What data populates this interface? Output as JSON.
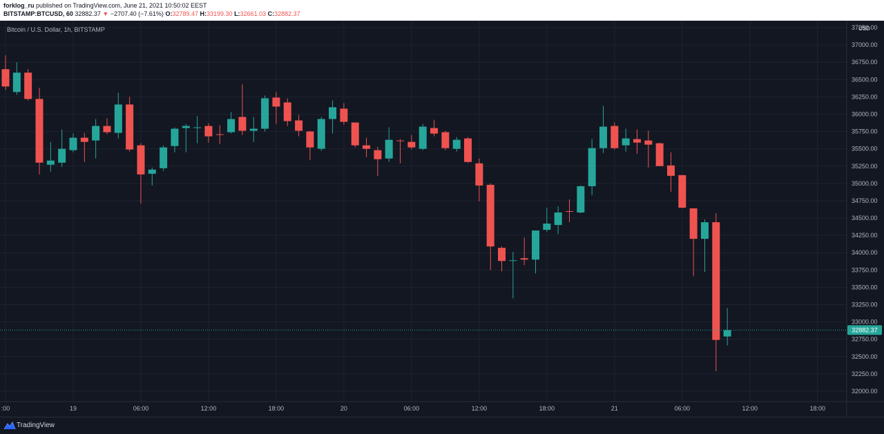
{
  "header": {
    "author": "forklog_ru",
    "published_text": "published on TradingView.com, June 21, 2021 10:50:02 EEST",
    "symbol": "BITSTAMP:BTCUSD, 60",
    "last": "32882.37",
    "arrow": "▼",
    "change": "−2707.40 (−7.61%)",
    "o_label": "O:",
    "o_value": "32789.47",
    "h_label": "H:",
    "h_value": "33199.30",
    "l_label": "L:",
    "l_value": "32661.03",
    "c_label": "C:",
    "c_value": "32882.37"
  },
  "legend": {
    "title": "Bitcoin / U.S. Dollar, 1h, BITSTAMP"
  },
  "footer": {
    "brand": "TradingView"
  },
  "colors": {
    "background": "#131722",
    "grid": "#1f2330",
    "up": "#26a69a",
    "down": "#ef5350",
    "text": "#b2b5be"
  },
  "chart_data": {
    "type": "candlestick",
    "currency_label": "USD",
    "last_price": 32882.37,
    "last_price_label": "32882.37",
    "ylim": [
      31850,
      37350
    ],
    "y_ticks": [
      32000,
      32250,
      32500,
      32750,
      33000,
      33250,
      33500,
      33750,
      34000,
      34250,
      34500,
      34750,
      35000,
      35250,
      35500,
      35750,
      36000,
      36250,
      36500,
      36750,
      37000,
      37250
    ],
    "y_tick_labels": [
      "32000.00",
      "32250.00",
      "32500.00",
      "32750.00",
      "33000.00",
      "33250.00",
      "33500.00",
      "33750.00",
      "34000.00",
      "34250.00",
      "34500.00",
      "34750.00",
      "35000.00",
      "35250.00",
      "35500.00",
      "35750.00",
      "36000.00",
      "36250.00",
      "36500.00",
      "36750.00",
      "37000.00",
      "37250.00"
    ],
    "x_ticks": [
      {
        "hour": 0,
        "label": ":00"
      },
      {
        "hour": 6,
        "label": "19"
      },
      {
        "hour": 12,
        "label": "06:00"
      },
      {
        "hour": 18,
        "label": "12:00"
      },
      {
        "hour": 24,
        "label": "18:00"
      },
      {
        "hour": 30,
        "label": "20"
      },
      {
        "hour": 36,
        "label": "06:00"
      },
      {
        "hour": 42,
        "label": "12:00"
      },
      {
        "hour": 48,
        "label": "18:00"
      },
      {
        "hour": 54,
        "label": "21"
      },
      {
        "hour": 60,
        "label": "06:00"
      },
      {
        "hour": 66,
        "label": "12:00"
      },
      {
        "hour": 72,
        "label": "18:00"
      }
    ],
    "candles": [
      {
        "t": 0,
        "o": 36650,
        "h": 36850,
        "l": 36350,
        "c": 36400
      },
      {
        "t": 1,
        "o": 36320,
        "h": 36750,
        "l": 36280,
        "c": 36600
      },
      {
        "t": 2,
        "o": 36600,
        "h": 36650,
        "l": 36200,
        "c": 36220
      },
      {
        "t": 3,
        "o": 36220,
        "h": 36380,
        "l": 35130,
        "c": 35300
      },
      {
        "t": 4,
        "o": 35270,
        "h": 35600,
        "l": 35170,
        "c": 35330
      },
      {
        "t": 5,
        "o": 35300,
        "h": 35780,
        "l": 35240,
        "c": 35500
      },
      {
        "t": 6,
        "o": 35480,
        "h": 35720,
        "l": 35450,
        "c": 35660
      },
      {
        "t": 7,
        "o": 35660,
        "h": 35730,
        "l": 35310,
        "c": 35600
      },
      {
        "t": 8,
        "o": 35620,
        "h": 35930,
        "l": 35360,
        "c": 35830
      },
      {
        "t": 9,
        "o": 35830,
        "h": 35940,
        "l": 35710,
        "c": 35740
      },
      {
        "t": 10,
        "o": 35730,
        "h": 36310,
        "l": 35650,
        "c": 36140
      },
      {
        "t": 11,
        "o": 36140,
        "h": 36250,
        "l": 35460,
        "c": 35490
      },
      {
        "t": 12,
        "o": 35550,
        "h": 35580,
        "l": 34710,
        "c": 35130
      },
      {
        "t": 13,
        "o": 35140,
        "h": 35230,
        "l": 34970,
        "c": 35200
      },
      {
        "t": 14,
        "o": 35220,
        "h": 35550,
        "l": 35180,
        "c": 35520
      },
      {
        "t": 15,
        "o": 35540,
        "h": 35810,
        "l": 35450,
        "c": 35790
      },
      {
        "t": 16,
        "o": 35800,
        "h": 35860,
        "l": 35450,
        "c": 35830
      },
      {
        "t": 17,
        "o": 35810,
        "h": 35970,
        "l": 35580,
        "c": 35810
      },
      {
        "t": 18,
        "o": 35830,
        "h": 35870,
        "l": 35590,
        "c": 35680
      },
      {
        "t": 19,
        "o": 35710,
        "h": 35840,
        "l": 35570,
        "c": 35700
      },
      {
        "t": 20,
        "o": 35740,
        "h": 36030,
        "l": 35720,
        "c": 35930
      },
      {
        "t": 21,
        "o": 35960,
        "h": 36430,
        "l": 35700,
        "c": 35760
      },
      {
        "t": 22,
        "o": 35760,
        "h": 35960,
        "l": 35600,
        "c": 35790
      },
      {
        "t": 23,
        "o": 35790,
        "h": 36270,
        "l": 35750,
        "c": 36230
      },
      {
        "t": 24,
        "o": 36240,
        "h": 36320,
        "l": 35860,
        "c": 36110
      },
      {
        "t": 25,
        "o": 36170,
        "h": 36230,
        "l": 35830,
        "c": 35900
      },
      {
        "t": 26,
        "o": 35910,
        "h": 35990,
        "l": 35680,
        "c": 35760
      },
      {
        "t": 27,
        "o": 35750,
        "h": 35760,
        "l": 35340,
        "c": 35520
      },
      {
        "t": 28,
        "o": 35500,
        "h": 35960,
        "l": 35470,
        "c": 35930
      },
      {
        "t": 29,
        "o": 35930,
        "h": 36200,
        "l": 35720,
        "c": 36100
      },
      {
        "t": 30,
        "o": 36080,
        "h": 36160,
        "l": 35850,
        "c": 35890
      },
      {
        "t": 31,
        "o": 35880,
        "h": 35880,
        "l": 35520,
        "c": 35550
      },
      {
        "t": 32,
        "o": 35550,
        "h": 35660,
        "l": 35380,
        "c": 35500
      },
      {
        "t": 33,
        "o": 35480,
        "h": 35530,
        "l": 35110,
        "c": 35350
      },
      {
        "t": 34,
        "o": 35360,
        "h": 35810,
        "l": 35310,
        "c": 35630
      },
      {
        "t": 35,
        "o": 35620,
        "h": 35640,
        "l": 35290,
        "c": 35610
      },
      {
        "t": 36,
        "o": 35600,
        "h": 35700,
        "l": 35490,
        "c": 35520
      },
      {
        "t": 37,
        "o": 35500,
        "h": 35860,
        "l": 35480,
        "c": 35820
      },
      {
        "t": 38,
        "o": 35800,
        "h": 35920,
        "l": 35680,
        "c": 35720
      },
      {
        "t": 39,
        "o": 35740,
        "h": 35760,
        "l": 35480,
        "c": 35510
      },
      {
        "t": 40,
        "o": 35500,
        "h": 35670,
        "l": 35460,
        "c": 35630
      },
      {
        "t": 41,
        "o": 35650,
        "h": 35670,
        "l": 35300,
        "c": 35310
      },
      {
        "t": 42,
        "o": 35290,
        "h": 35360,
        "l": 34740,
        "c": 34970
      },
      {
        "t": 43,
        "o": 34980,
        "h": 35000,
        "l": 33750,
        "c": 34090
      },
      {
        "t": 44,
        "o": 34070,
        "h": 34090,
        "l": 33730,
        "c": 33880
      },
      {
        "t": 45,
        "o": 33890,
        "h": 34010,
        "l": 33340,
        "c": 33890
      },
      {
        "t": 46,
        "o": 33920,
        "h": 34220,
        "l": 33820,
        "c": 33900
      },
      {
        "t": 47,
        "o": 33900,
        "h": 34320,
        "l": 33700,
        "c": 34320
      },
      {
        "t": 48,
        "o": 34330,
        "h": 34650,
        "l": 34300,
        "c": 34420
      },
      {
        "t": 49,
        "o": 34400,
        "h": 34670,
        "l": 34270,
        "c": 34580
      },
      {
        "t": 50,
        "o": 34600,
        "h": 34770,
        "l": 34440,
        "c": 34590
      },
      {
        "t": 51,
        "o": 34580,
        "h": 34970,
        "l": 34570,
        "c": 34960
      },
      {
        "t": 52,
        "o": 34960,
        "h": 35640,
        "l": 34830,
        "c": 35510
      },
      {
        "t": 53,
        "o": 35510,
        "h": 36120,
        "l": 35440,
        "c": 35820
      },
      {
        "t": 54,
        "o": 35830,
        "h": 35880,
        "l": 35490,
        "c": 35510
      },
      {
        "t": 55,
        "o": 35550,
        "h": 35790,
        "l": 35460,
        "c": 35650
      },
      {
        "t": 56,
        "o": 35640,
        "h": 35780,
        "l": 35430,
        "c": 35590
      },
      {
        "t": 57,
        "o": 35620,
        "h": 35760,
        "l": 35230,
        "c": 35560
      },
      {
        "t": 58,
        "o": 35580,
        "h": 35590,
        "l": 35260,
        "c": 35250
      },
      {
        "t": 59,
        "o": 35260,
        "h": 35450,
        "l": 34880,
        "c": 35110
      },
      {
        "t": 60,
        "o": 35120,
        "h": 35120,
        "l": 34640,
        "c": 34650
      },
      {
        "t": 61,
        "o": 34640,
        "h": 34640,
        "l": 33660,
        "c": 34200
      },
      {
        "t": 62,
        "o": 34200,
        "h": 34480,
        "l": 33720,
        "c": 34440
      },
      {
        "t": 63,
        "o": 34440,
        "h": 34570,
        "l": 32290,
        "c": 32740
      },
      {
        "t": 64,
        "o": 32789.47,
        "h": 33199.3,
        "l": 32661.03,
        "c": 32882.37
      }
    ]
  }
}
